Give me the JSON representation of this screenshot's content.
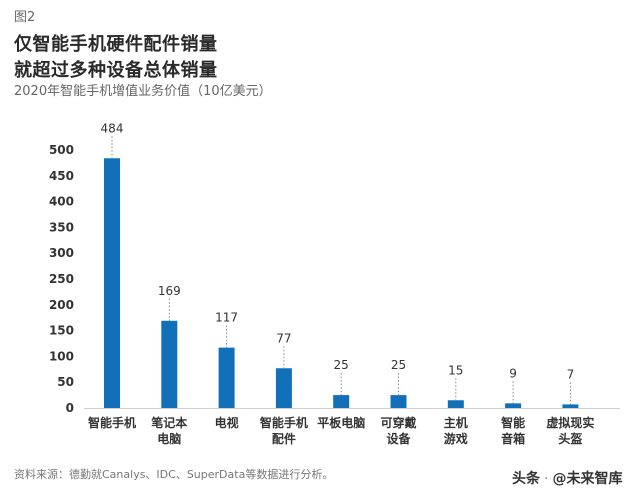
{
  "figure_label": "图2",
  "watermark": {
    "platform": "头条",
    "account": "@未来智库"
  },
  "chart_data": {
    "type": "bar",
    "title_line1": "仅智能手机硬件配件销量",
    "title_line2": "就超过多种设备总体销量",
    "subtitle": "2020年智能手机增值业务价值（10亿美元）",
    "categories": [
      [
        "智能手机"
      ],
      [
        "笔记本",
        "电脑"
      ],
      [
        "电视"
      ],
      [
        "智能手机",
        "配件"
      ],
      [
        "平板电脑"
      ],
      [
        "可穿戴",
        "设备"
      ],
      [
        "主机",
        "游戏"
      ],
      [
        "智能",
        "音箱"
      ],
      [
        "虚拟现实",
        "头盔"
      ]
    ],
    "values": [
      484,
      169,
      117,
      77,
      25,
      25,
      15,
      9,
      7
    ],
    "yticks": [
      0,
      50,
      100,
      150,
      200,
      250,
      300,
      350,
      400,
      450,
      500
    ],
    "ylim": [
      0,
      500
    ],
    "bar_color": "#1170b8",
    "source": "资料来源：德勤就Canalys、IDC、SuperData等数据进行分析。"
  }
}
